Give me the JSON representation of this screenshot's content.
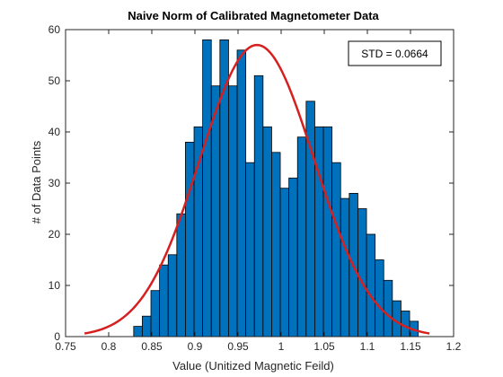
{
  "chart_data": {
    "type": "bar",
    "title": "Naive Norm of Calibrated Magnetometer Data",
    "xlabel": "Value (Unitized Magnetic Feild)",
    "ylabel": "# of Data Points",
    "xlim": [
      0.75,
      1.2
    ],
    "ylim": [
      0,
      60
    ],
    "xticks": [
      "0.75",
      "0.8",
      "0.85",
      "0.9",
      "0.95",
      "1",
      "1.05",
      "1.1",
      "1.15",
      "1.2"
    ],
    "xtick_values": [
      0.75,
      0.8,
      0.85,
      0.9,
      0.95,
      1.0,
      1.05,
      1.1,
      1.15,
      1.2
    ],
    "yticks": [
      "0",
      "10",
      "20",
      "30",
      "40",
      "50",
      "60"
    ],
    "ytick_values": [
      0,
      10,
      20,
      30,
      40,
      50,
      60
    ],
    "grid": false,
    "bin_start": 0.829,
    "bin_width": 0.01,
    "values": [
      2,
      4,
      9,
      14,
      16,
      24,
      38,
      41,
      58,
      49,
      58,
      49,
      56,
      34,
      51,
      41,
      36,
      29,
      31,
      39,
      46,
      41,
      41,
      34,
      27,
      28,
      25,
      20,
      15,
      11,
      7,
      5,
      3
    ],
    "bar_color": "#0072BD",
    "bar_edge_color": "#000000",
    "fit_curve": {
      "type": "normal",
      "mean": 0.972,
      "std": 0.0664,
      "peak": 57,
      "x_range": [
        0.772,
        1.172
      ],
      "color": "#D62020"
    },
    "annotation": {
      "text": "STD = 0.0664"
    }
  }
}
